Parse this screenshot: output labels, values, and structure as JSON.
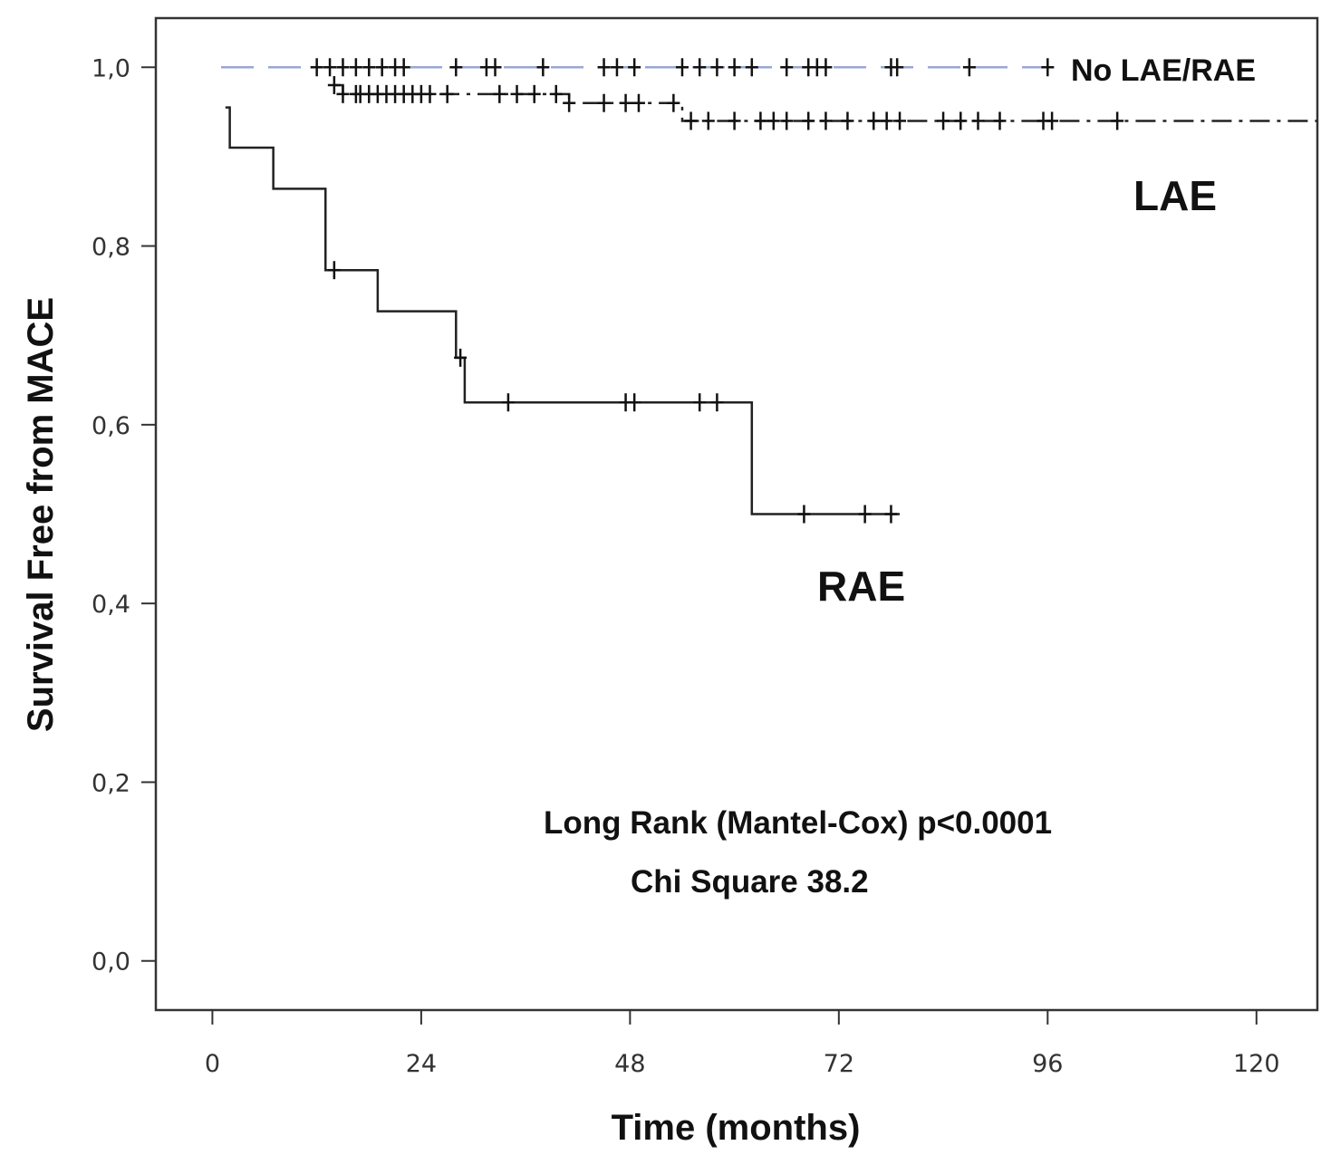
{
  "chart_data": {
    "type": "line",
    "subtype": "kaplan-meier-step",
    "title": "",
    "xlabel": "Time (months)",
    "ylabel": "Survival Free from MACE",
    "xlim": [
      -6.5,
      127
    ],
    "ylim": [
      -0.055,
      1.055
    ],
    "x_ticks": [
      0,
      24,
      48,
      72,
      96,
      120
    ],
    "x_tick_labels": [
      "0",
      "24",
      "48",
      "72",
      "96",
      "120"
    ],
    "y_ticks": [
      0.0,
      0.2,
      0.4,
      0.6,
      0.8,
      1.0
    ],
    "y_tick_labels": [
      "0,0",
      "0,2",
      "0,4",
      "0,6",
      "0,8",
      "1,0"
    ],
    "grid": false,
    "legend": "none",
    "series": [
      {
        "name": "No LAE/RAE",
        "line_style": "long-dash",
        "color": "#9aa7d6",
        "steps": [
          [
            1,
            1.0
          ],
          [
            96,
            1.0
          ]
        ],
        "censored": [
          [
            12,
            1.0
          ],
          [
            13.5,
            1.0
          ],
          [
            15,
            1.0
          ],
          [
            16.5,
            1.0
          ],
          [
            18,
            1.0
          ],
          [
            19.5,
            1.0
          ],
          [
            21,
            1.0
          ],
          [
            22,
            1.0
          ],
          [
            28,
            1.0
          ],
          [
            31.5,
            1.0
          ],
          [
            32.5,
            1.0
          ],
          [
            38,
            1.0
          ],
          [
            45,
            1.0
          ],
          [
            46.5,
            1.0
          ],
          [
            48.5,
            1.0
          ],
          [
            54,
            1.0
          ],
          [
            56,
            1.0
          ],
          [
            58,
            1.0
          ],
          [
            60,
            1.0
          ],
          [
            62,
            1.0
          ],
          [
            66,
            1.0
          ],
          [
            68.5,
            1.0
          ],
          [
            69.5,
            1.0
          ],
          [
            70.5,
            1.0
          ],
          [
            78,
            1.0
          ],
          [
            78.7,
            1.0
          ],
          [
            87,
            1.0
          ],
          [
            96,
            1.0
          ]
        ]
      },
      {
        "name": "LAE",
        "line_style": "dash-dot",
        "color": "#222222",
        "steps": [
          [
            14,
            0.98
          ],
          [
            15,
            0.97
          ],
          [
            41,
            0.96
          ],
          [
            54,
            0.94
          ],
          [
            127,
            0.94
          ]
        ],
        "censored": [
          [
            14,
            0.98
          ],
          [
            15,
            0.97
          ],
          [
            16.5,
            0.97
          ],
          [
            17,
            0.97
          ],
          [
            18,
            0.97
          ],
          [
            19,
            0.97
          ],
          [
            20,
            0.97
          ],
          [
            21,
            0.97
          ],
          [
            22,
            0.97
          ],
          [
            23,
            0.97
          ],
          [
            24,
            0.97
          ],
          [
            25,
            0.97
          ],
          [
            27,
            0.97
          ],
          [
            33,
            0.97
          ],
          [
            35,
            0.97
          ],
          [
            37,
            0.97
          ],
          [
            39.5,
            0.97
          ],
          [
            41,
            0.96
          ],
          [
            45,
            0.96
          ],
          [
            47.5,
            0.96
          ],
          [
            49,
            0.96
          ],
          [
            53,
            0.96
          ],
          [
            55,
            0.94
          ],
          [
            57,
            0.94
          ],
          [
            60,
            0.94
          ],
          [
            63,
            0.94
          ],
          [
            64.5,
            0.94
          ],
          [
            66,
            0.94
          ],
          [
            68.5,
            0.94
          ],
          [
            70.5,
            0.94
          ],
          [
            73,
            0.94
          ],
          [
            76,
            0.94
          ],
          [
            77.5,
            0.94
          ],
          [
            79,
            0.94
          ],
          [
            84,
            0.94
          ],
          [
            86,
            0.94
          ],
          [
            88,
            0.94
          ],
          [
            90.5,
            0.94
          ],
          [
            95.5,
            0.94
          ],
          [
            96.5,
            0.94
          ],
          [
            104,
            0.94
          ]
        ]
      },
      {
        "name": "RAE",
        "line_style": "solid",
        "color": "#222222",
        "steps": [
          [
            1.5,
            0.955
          ],
          [
            2,
            0.91
          ],
          [
            7,
            0.864
          ],
          [
            13,
            0.773
          ],
          [
            19,
            0.727
          ],
          [
            28,
            0.675
          ],
          [
            29,
            0.625
          ],
          [
            62,
            0.5
          ],
          [
            79,
            0.5
          ]
        ],
        "censored": [
          [
            14,
            0.773
          ],
          [
            28.5,
            0.675
          ],
          [
            34,
            0.625
          ],
          [
            47.5,
            0.625
          ],
          [
            48.5,
            0.625
          ],
          [
            56,
            0.625
          ],
          [
            58,
            0.625
          ],
          [
            68,
            0.5
          ],
          [
            75,
            0.5
          ],
          [
            78,
            0.5
          ]
        ]
      }
    ],
    "series_labels": [
      "No LAE/RAE",
      "LAE",
      "RAE"
    ],
    "annotations": [
      "Long Rank (Mantel-Cox) p<0.0001",
      "Chi Square 38.2"
    ]
  }
}
